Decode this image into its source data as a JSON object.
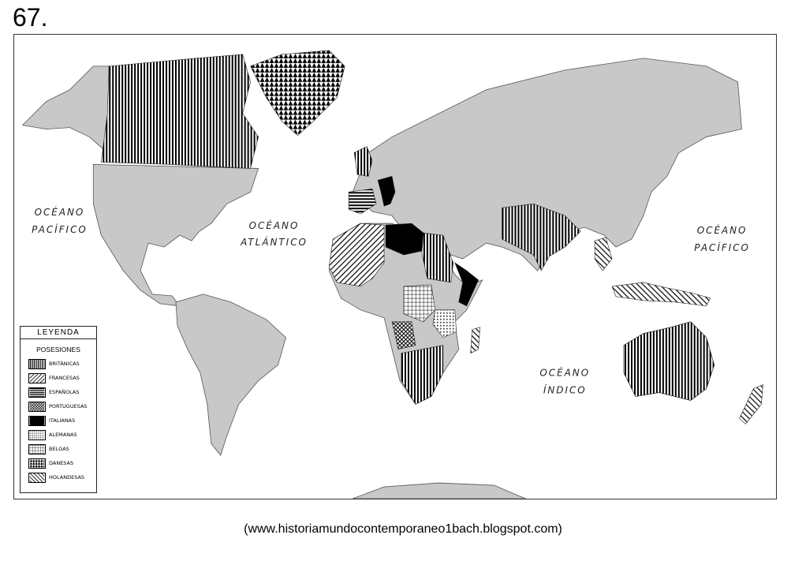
{
  "question_number": "67.",
  "oceans": [
    {
      "lines": [
        "OCÉANO",
        "PACÍFICO"
      ]
    },
    {
      "lines": [
        "OCÉANO",
        "ATLÁNTICO"
      ]
    },
    {
      "lines": [
        "OCÉANO",
        "PACÍFICO"
      ]
    },
    {
      "lines": [
        "OCÉANO",
        "ÍNDICO"
      ]
    }
  ],
  "legend": {
    "title": "LEYENDA",
    "subtitle": "POSESIONES",
    "items": [
      {
        "label": "BRITÁNICAS",
        "pattern": "vertical-lines"
      },
      {
        "label": "FRANCESAS",
        "pattern": "diagonal-lines"
      },
      {
        "label": "ESPAÑOLAS",
        "pattern": "horizontal-lines"
      },
      {
        "label": "PORTUGUESAS",
        "pattern": "crosshatch"
      },
      {
        "label": "ITALIANAS",
        "pattern": "solid-black"
      },
      {
        "label": "ALEMANAS",
        "pattern": "dots"
      },
      {
        "label": "BELGAS",
        "pattern": "grid"
      },
      {
        "label": "DANESAS",
        "pattern": "triangles"
      },
      {
        "label": "HOLANDESAS",
        "pattern": "reverse-diagonal"
      }
    ]
  },
  "colors": {
    "land": "#c8c8c8",
    "ocean": "#ffffff",
    "outline": "#555555"
  },
  "source": "(www.historiamundocontemporaneo1bach.blogspot.com)"
}
